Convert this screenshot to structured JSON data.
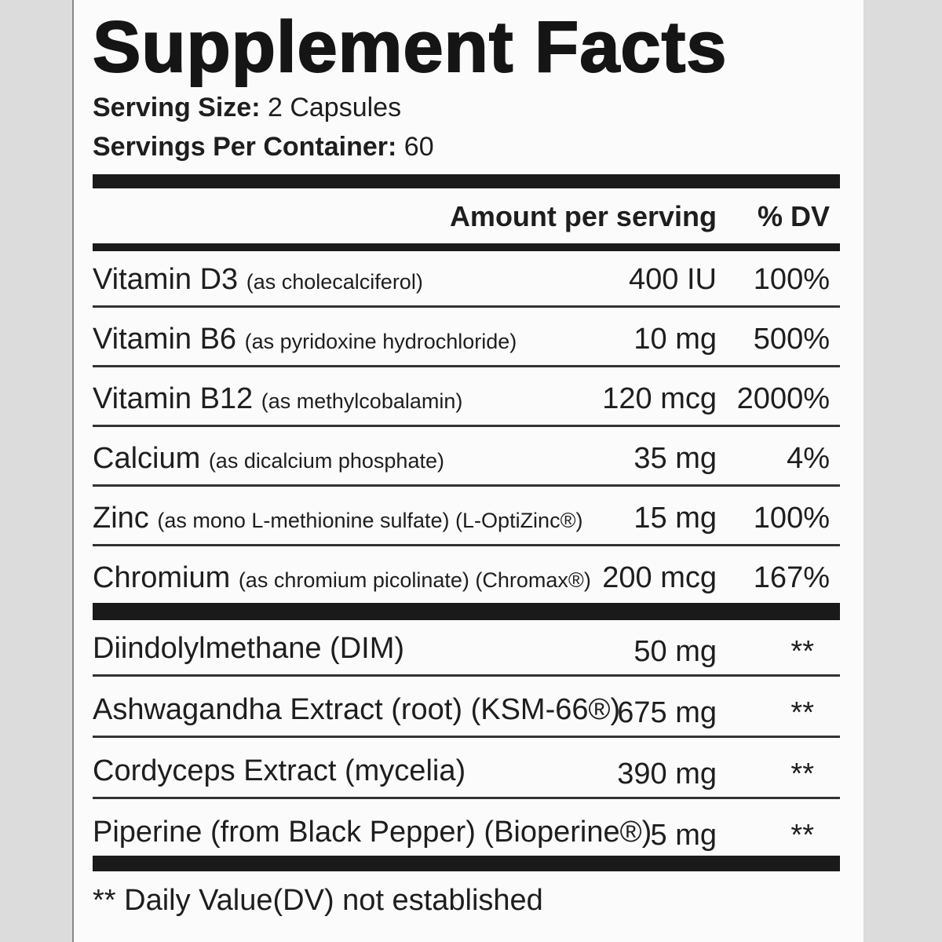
{
  "title": "Supplement Facts",
  "serving": [
    {
      "label": "Serving Size:",
      "value": "2 Capsules"
    },
    {
      "label": "Servings Per Container:",
      "value": "60"
    }
  ],
  "header": {
    "amount": "Amount per serving",
    "dv": "% DV"
  },
  "vitamins": [
    {
      "name": "Vitamin D3",
      "source": "(as cholecalciferol)",
      "amount": "400 IU",
      "dv": "100%"
    },
    {
      "name": "Vitamin B6",
      "source": "(as pyridoxine hydrochloride)",
      "amount": "10 mg",
      "dv": "500%"
    },
    {
      "name": "Vitamin B12",
      "source": "(as methylcobalamin)",
      "amount": "120 mcg",
      "dv": "2000%"
    },
    {
      "name": "Calcium",
      "source": "(as dicalcium phosphate)",
      "amount": "35 mg",
      "dv": "4%"
    },
    {
      "name": "Zinc",
      "source": "(as mono L-methionine sulfate) (L-OptiZinc®)",
      "amount": "15 mg",
      "dv": "100%"
    },
    {
      "name": "Chromium",
      "source": "(as chromium picolinate) (Chromax®)",
      "amount": "200 mcg",
      "dv": "167%"
    }
  ],
  "others": [
    {
      "name": "Diindolylmethane (DIM)",
      "amount": "50 mg",
      "dv": "**"
    },
    {
      "name": "Ashwagandha Extract (root) (KSM-66®)",
      "amount": "675 mg",
      "dv": "**"
    },
    {
      "name": "Cordyceps Extract (mycelia)",
      "amount": "390 mg",
      "dv": "**"
    },
    {
      "name": "Piperine (from Black Pepper) (Bioperine®)",
      "amount": "5 mg",
      "dv": "**"
    }
  ],
  "footnote": "** Daily Value(DV) not established"
}
